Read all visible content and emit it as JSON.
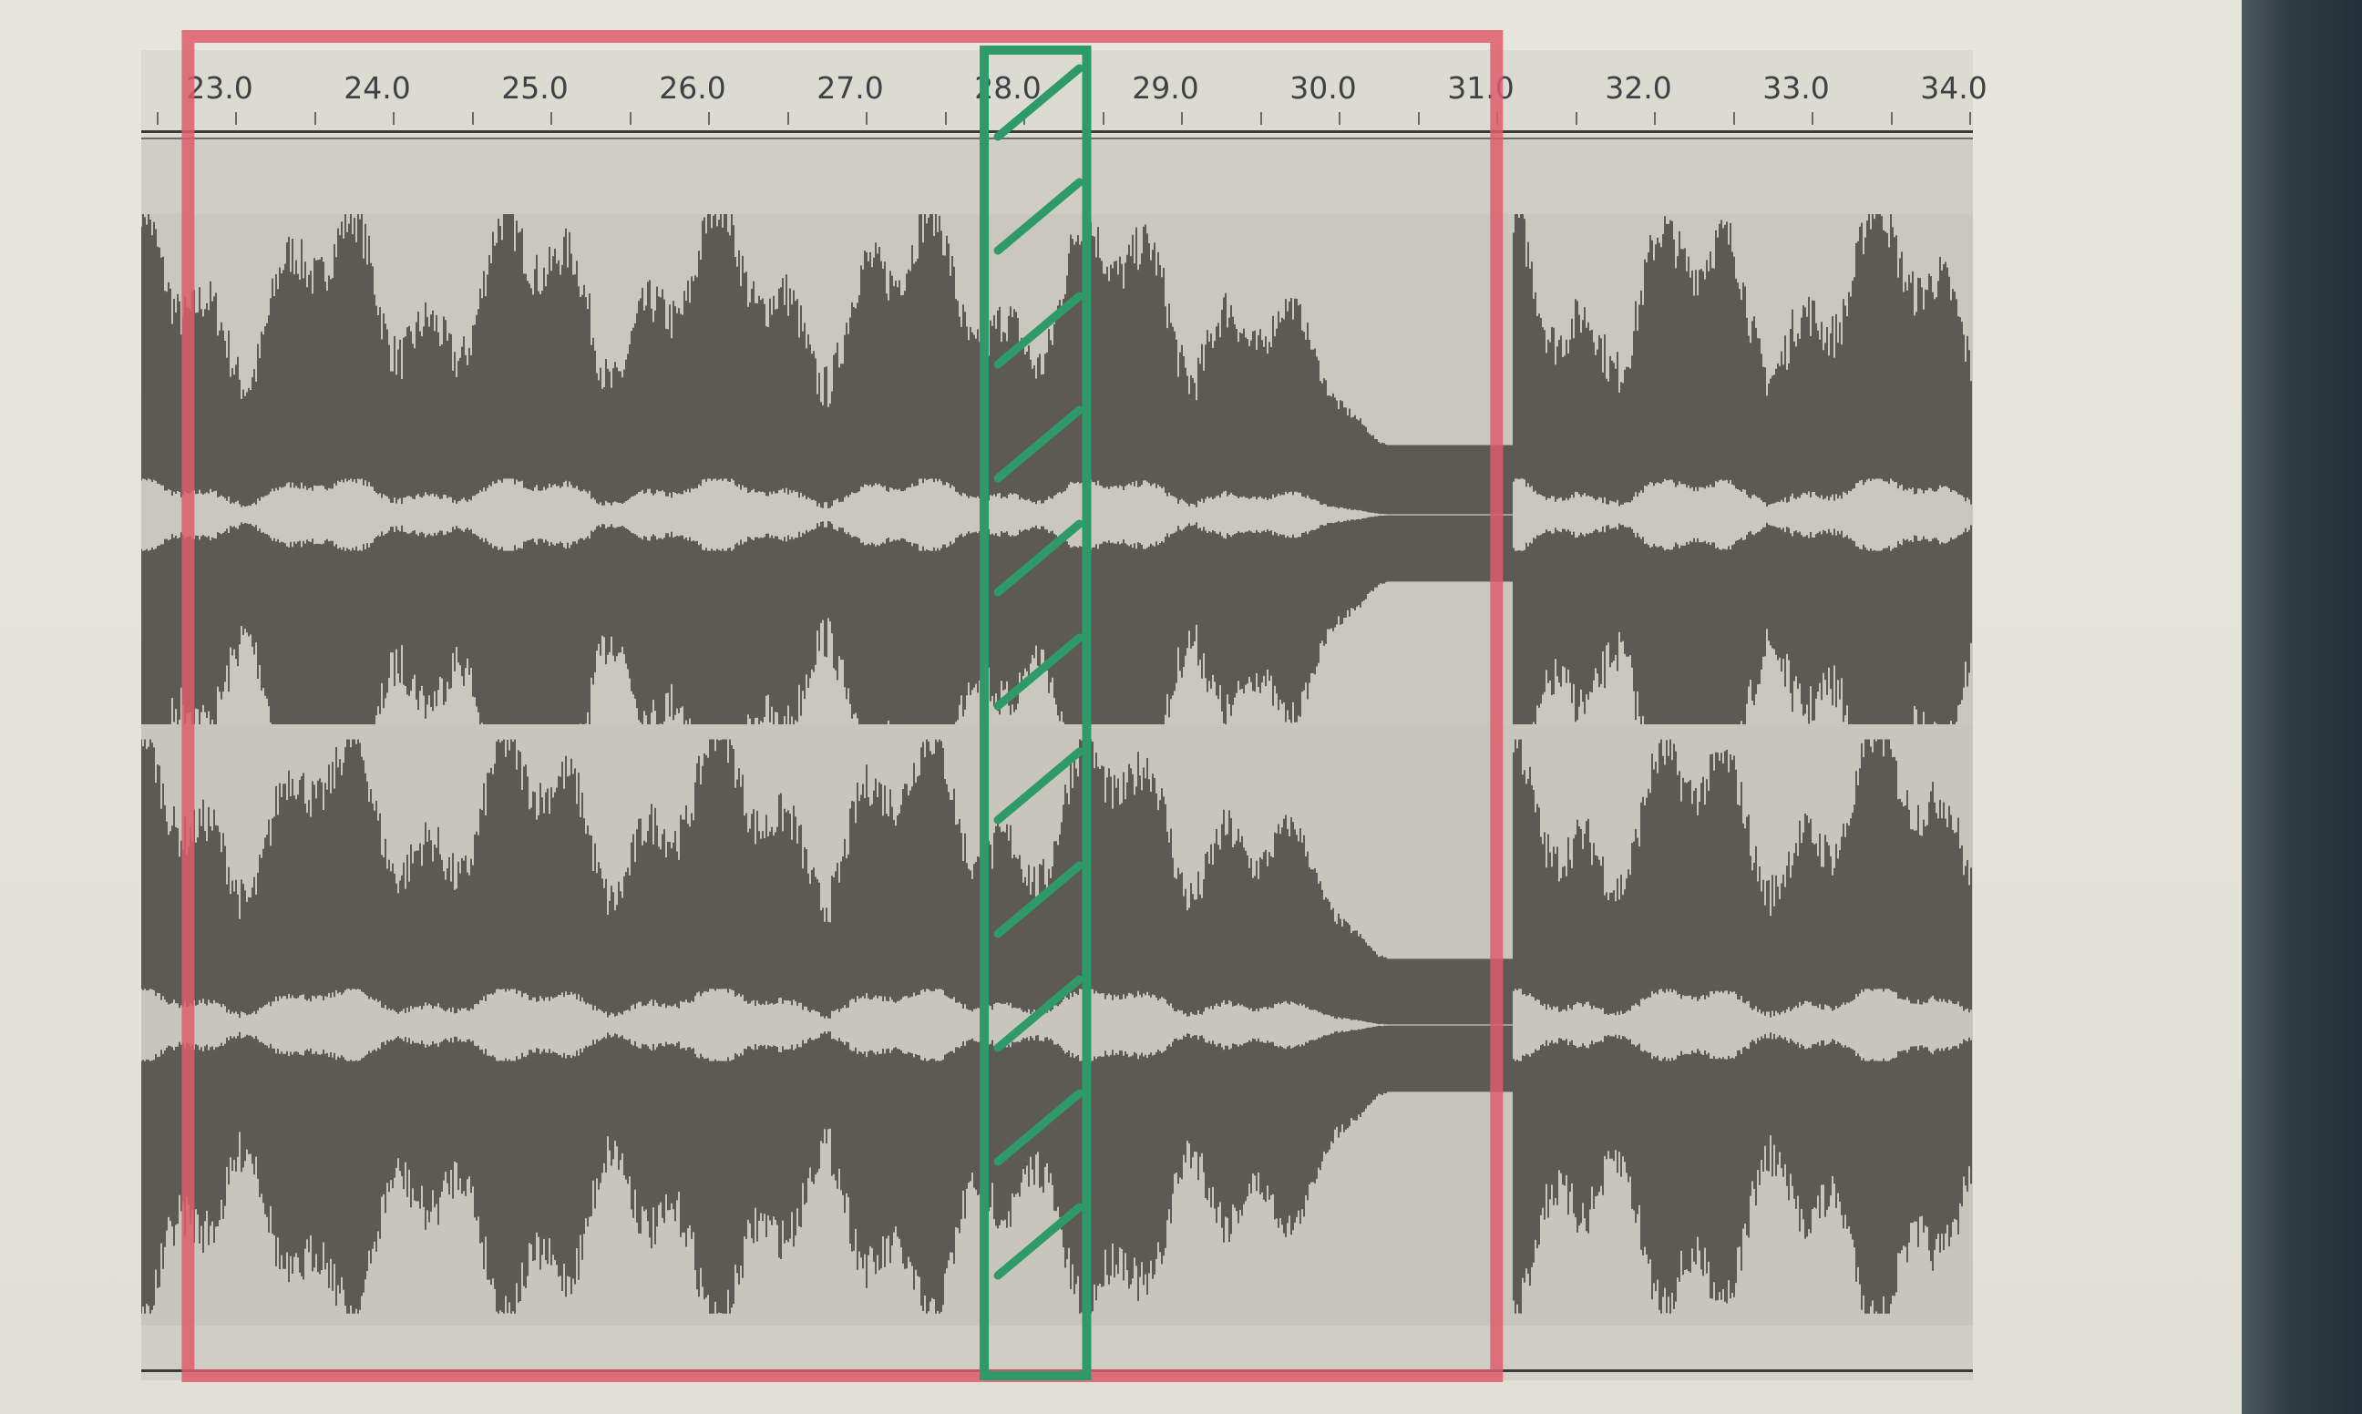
{
  "timeline": {
    "ticks": [
      "23.0",
      "24.0",
      "25.0",
      "26.0",
      "27.0",
      "28.0",
      "29.0",
      "30.0",
      "31.0",
      "32.0",
      "33.0",
      "34.0"
    ],
    "visible_range_seconds": [
      22.8,
      34.0
    ]
  },
  "waveform": {
    "channels": 2,
    "waveform_color": "#5d5a55",
    "background_color": "#cfcdc4",
    "fade_out_start": 29.4,
    "silence_start": 30.4,
    "resume": 31.2
  },
  "annotations": {
    "red_box": {
      "color": "#dd5d6b",
      "start_seconds": 22.8,
      "end_seconds": 31.1
    },
    "green_box": {
      "color": "#2e9a6a",
      "start_seconds": 27.85,
      "end_seconds": 28.5,
      "hatched": true
    }
  }
}
